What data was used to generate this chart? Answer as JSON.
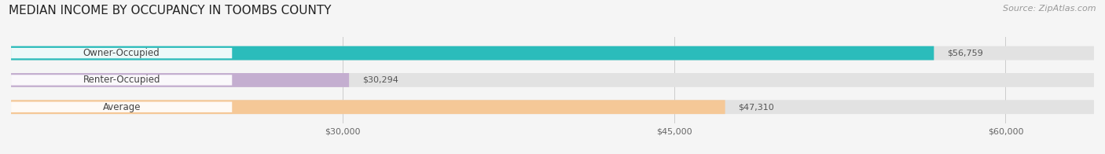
{
  "title": "MEDIAN INCOME BY OCCUPANCY IN TOOMBS COUNTY",
  "source": "Source: ZipAtlas.com",
  "categories": [
    "Owner-Occupied",
    "Renter-Occupied",
    "Average"
  ],
  "values": [
    56759,
    30294,
    47310
  ],
  "labels": [
    "$56,759",
    "$30,294",
    "$47,310"
  ],
  "bar_colors": [
    "#2bbcbb",
    "#c4aed0",
    "#f5c897"
  ],
  "background_color": "#f5f5f5",
  "bar_bg_color": "#e2e2e2",
  "xlim_min": 15000,
  "xlim_max": 64000,
  "xticks": [
    30000,
    45000,
    60000
  ],
  "xtick_labels": [
    "$30,000",
    "$45,000",
    "$60,000"
  ],
  "title_fontsize": 11,
  "source_fontsize": 8,
  "label_fontsize": 8,
  "category_fontsize": 8.5,
  "bar_height": 0.52
}
